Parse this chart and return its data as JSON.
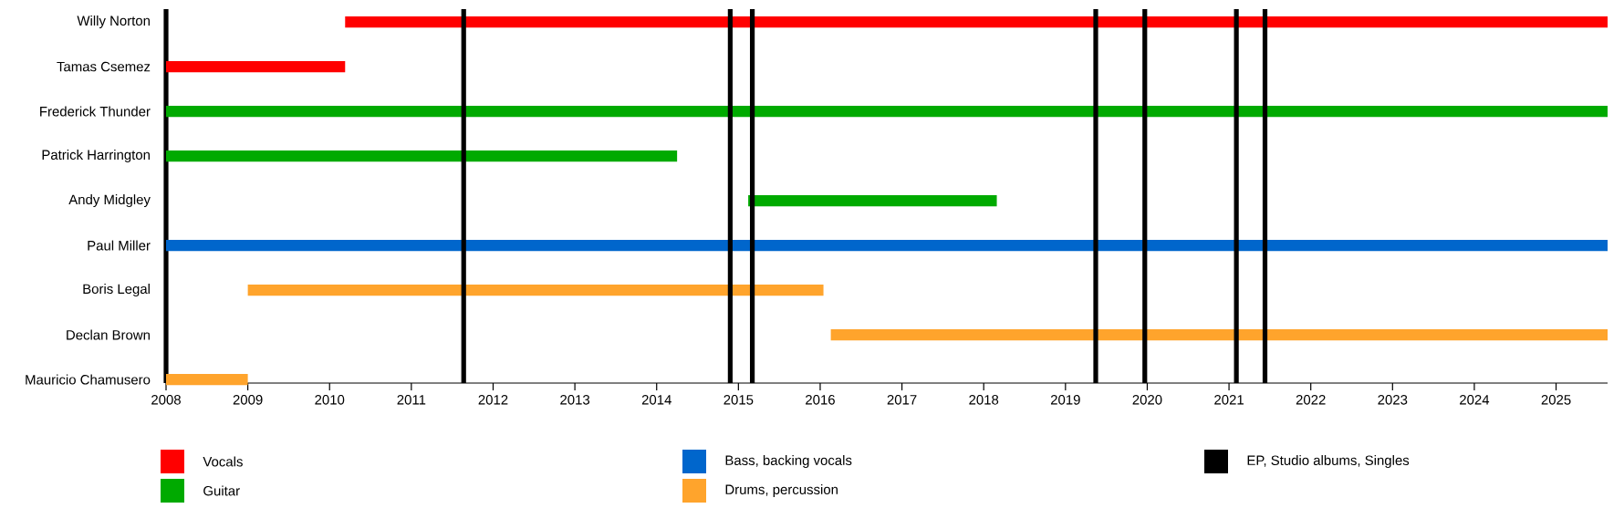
{
  "chart_data": {
    "type": "bar",
    "orientation": "horizontal",
    "categories": [
      "Willy Norton",
      "Tamas Csemez",
      "Frederick Thunder",
      "Patrick Harrington",
      "Andy Midgley",
      "Paul Miller",
      "Boris Legal",
      "Declan Brown",
      "Mauricio Chamusero"
    ],
    "series": [
      {
        "name": "Vocals",
        "color": "#ff0000",
        "base": [
          2010.19,
          2008,
          null,
          null,
          null,
          null,
          null,
          null,
          null
        ],
        "values": [
          15.44,
          2.19,
          null,
          null,
          null,
          null,
          null,
          null,
          null
        ]
      },
      {
        "name": "Guitar",
        "color": "#00aa00",
        "base": [
          null,
          null,
          2008,
          2008,
          2015.12,
          null,
          null,
          null,
          null
        ],
        "values": [
          null,
          null,
          17.63,
          6.25,
          3.04,
          null,
          null,
          null,
          null
        ]
      },
      {
        "name": "Bass, backing vocals",
        "color": "#0066cc",
        "base": [
          null,
          null,
          null,
          null,
          null,
          2008,
          null,
          null,
          null
        ],
        "values": [
          null,
          null,
          null,
          null,
          null,
          17.63,
          null,
          null,
          null
        ]
      },
      {
        "name": "Drums, percussion",
        "color": "#ffa42c",
        "base": [
          null,
          null,
          null,
          null,
          null,
          null,
          2009.0,
          2016.13,
          2008
        ],
        "values": [
          null,
          null,
          null,
          null,
          null,
          null,
          7.04,
          9.5,
          1.0
        ]
      }
    ],
    "xlim": [
      2008,
      2025.63
    ],
    "xticks": [
      2008,
      2009,
      2010,
      2011,
      2012,
      2013,
      2014,
      2015,
      2016,
      2017,
      2018,
      2019,
      2020,
      2021,
      2022,
      2023,
      2024,
      2025
    ],
    "ref_lines": [
      {
        "axis": "x",
        "value": 2011.64,
        "color": "#000000",
        "label": "EP, Studio albums, Singles"
      },
      {
        "axis": "x",
        "value": 2014.9,
        "color": "#000000"
      },
      {
        "axis": "x",
        "value": 2015.17,
        "color": "#000000"
      },
      {
        "axis": "x",
        "value": 2019.37,
        "color": "#000000"
      },
      {
        "axis": "x",
        "value": 2019.97,
        "color": "#000000"
      },
      {
        "axis": "x",
        "value": 2021.09,
        "color": "#000000"
      },
      {
        "axis": "x",
        "value": 2021.44,
        "color": "#000000"
      }
    ],
    "grid": false,
    "legend": "bottom"
  }
}
